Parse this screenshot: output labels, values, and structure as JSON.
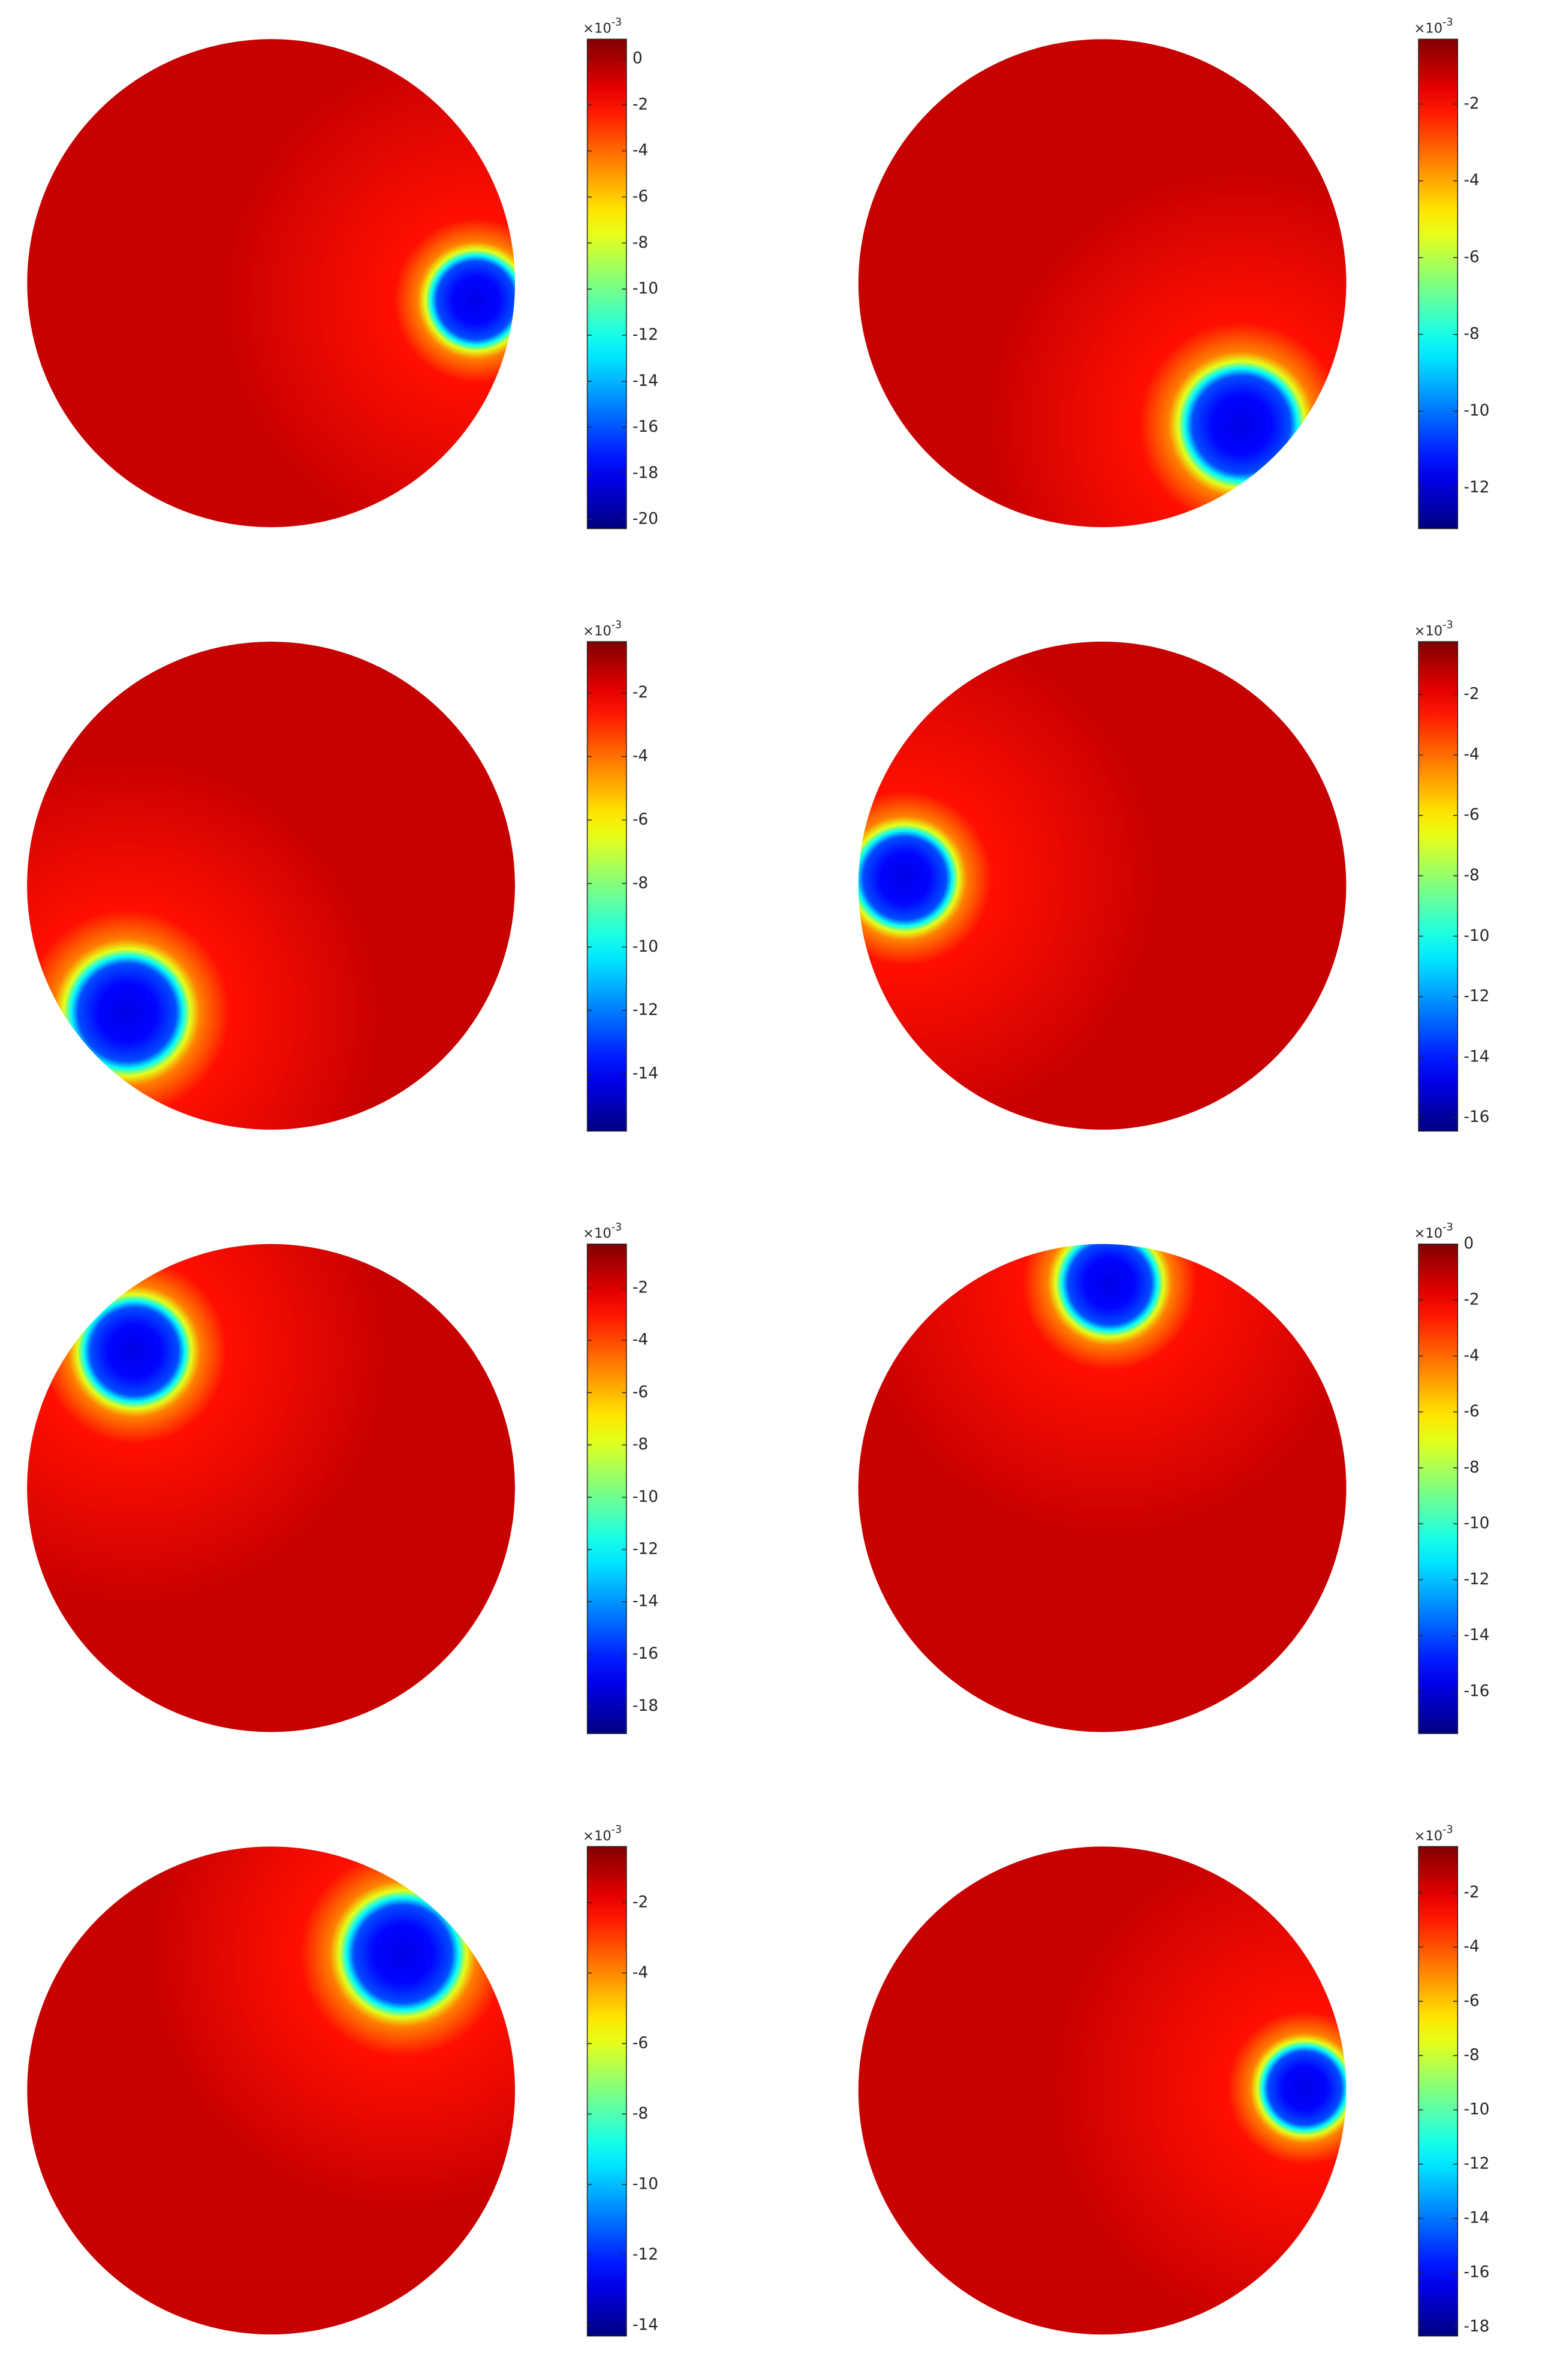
{
  "chart_data": [
    {
      "type": "heatmap",
      "clim": [
        -20.4,
        0.85
      ],
      "cticks": [
        0,
        -2,
        -4,
        -6,
        -8,
        -10,
        -12,
        -14,
        -16,
        -18,
        -20
      ],
      "colorbar_multiplier": "×10",
      "colorbar_exponent": "-3",
      "anomaly": {
        "x": 0.84,
        "y": -0.07,
        "r": 0.16
      }
    },
    {
      "type": "heatmap",
      "clim": [
        -13.06,
        -0.31
      ],
      "cticks": [
        -2,
        -4,
        -6,
        -8,
        -10,
        -12
      ],
      "colorbar_multiplier": "×10",
      "colorbar_exponent": "-3",
      "anomaly": {
        "x": 0.57,
        "y": -0.58,
        "r": 0.2
      }
    },
    {
      "type": "heatmap",
      "clim": [
        -15.8,
        -0.38
      ],
      "cticks": [
        -2,
        -4,
        -6,
        -8,
        -10,
        -12,
        -14
      ],
      "colorbar_multiplier": "×10",
      "colorbar_exponent": "-3",
      "anomaly": {
        "x": -0.59,
        "y": -0.52,
        "r": 0.2
      }
    },
    {
      "type": "heatmap",
      "clim": [
        -16.45,
        -0.25
      ],
      "cticks": [
        -2,
        -4,
        -6,
        -8,
        -10,
        -12,
        -14,
        -16
      ],
      "colorbar_multiplier": "×10",
      "colorbar_exponent": "-3",
      "anomaly": {
        "x": -0.81,
        "y": 0.03,
        "r": 0.17
      }
    },
    {
      "type": "heatmap",
      "clim": [
        -19.04,
        -0.32
      ],
      "cticks": [
        -2,
        -4,
        -6,
        -8,
        -10,
        -12,
        -14,
        -16,
        -18
      ],
      "colorbar_multiplier": "×10",
      "colorbar_exponent": "-3",
      "anomaly": {
        "x": -0.56,
        "y": 0.56,
        "r": 0.18
      }
    },
    {
      "type": "heatmap",
      "clim": [
        -17.5,
        0
      ],
      "cticks": [
        0,
        -2,
        -4,
        -6,
        -8,
        -10,
        -12,
        -14,
        -16
      ],
      "colorbar_multiplier": "×10",
      "colorbar_exponent": "-3",
      "anomaly": {
        "x": 0.03,
        "y": 0.84,
        "r": 0.17
      }
    },
    {
      "type": "heatmap",
      "clim": [
        -14.3,
        -0.41
      ],
      "cticks": [
        -2,
        -4,
        -6,
        -8,
        -10,
        -12,
        -14
      ],
      "colorbar_multiplier": "×10",
      "colorbar_exponent": "-3",
      "anomaly": {
        "x": 0.54,
        "y": 0.56,
        "r": 0.2
      }
    },
    {
      "type": "heatmap",
      "clim": [
        -18.33,
        -0.3
      ],
      "cticks": [
        -2,
        -4,
        -6,
        -8,
        -10,
        -12,
        -14,
        -16,
        -18
      ],
      "colorbar_multiplier": "×10",
      "colorbar_exponent": "-3",
      "anomaly": {
        "x": 0.83,
        "y": 0.01,
        "r": 0.15
      }
    }
  ]
}
